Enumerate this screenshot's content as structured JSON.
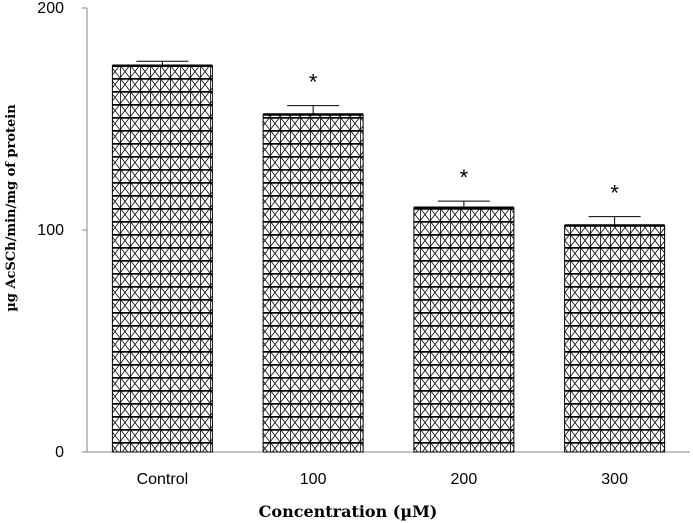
{
  "chart_data": {
    "type": "bar",
    "categories": [
      "Control",
      "100",
      "200",
      "300"
    ],
    "values": [
      174,
      152,
      110,
      102
    ],
    "errors": [
      2,
      4,
      3,
      4
    ],
    "significance": [
      "",
      "*",
      "*",
      "*"
    ],
    "xlabel": "Concentration (µM)",
    "ylabel": "µg AcSCh/min/mg of protein",
    "ylim": [
      0,
      200
    ],
    "yticks": [
      "0",
      "100",
      "200"
    ],
    "grid": false,
    "legend": "none",
    "bar_pattern": "crosshatch grid",
    "colors": {
      "bar_fill": "#ffffff",
      "bar_line": "#000000",
      "axis": "#888888"
    }
  }
}
